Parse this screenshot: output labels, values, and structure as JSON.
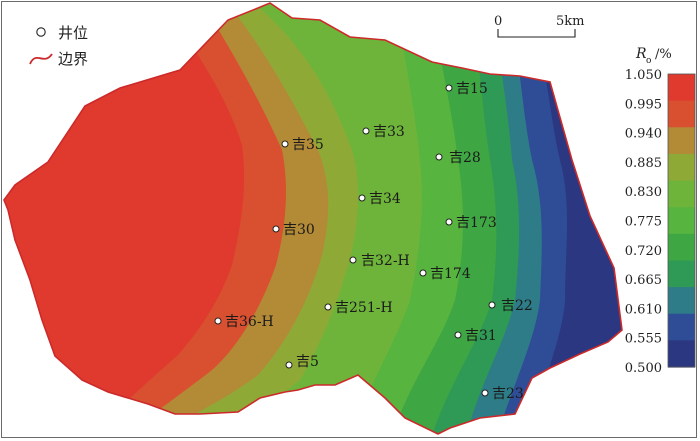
{
  "legend": {
    "well_label": "井位",
    "boundary_label": "边界"
  },
  "scale_bar": {
    "start_label": "0",
    "end_label": "5km"
  },
  "colorbar": {
    "title_symbol": "R",
    "title_subscript": "o",
    "title_unit": "/%",
    "ticks": [
      "1.050",
      "0.995",
      "0.940",
      "0.885",
      "0.830",
      "0.775",
      "0.720",
      "0.665",
      "0.610",
      "0.555",
      "0.500"
    ],
    "colors": [
      "#e03a2e",
      "#d8502f",
      "#b38a36",
      "#8fa936",
      "#6fb43a",
      "#57b43f",
      "#3fa644",
      "#2f9a55",
      "#2e7c87",
      "#2f4d96",
      "#2b3780"
    ]
  },
  "wells": [
    {
      "id": "well-ji15",
      "label": "吉15"
    },
    {
      "id": "well-ji33",
      "label": "吉33"
    },
    {
      "id": "well-ji35",
      "label": "吉35"
    },
    {
      "id": "well-ji28",
      "label": "吉28"
    },
    {
      "id": "well-ji34",
      "label": "吉34"
    },
    {
      "id": "well-ji173",
      "label": "吉173"
    },
    {
      "id": "well-ji30",
      "label": "吉30"
    },
    {
      "id": "well-ji32h",
      "label": "吉32-H"
    },
    {
      "id": "well-ji174",
      "label": "吉174"
    },
    {
      "id": "well-ji251h",
      "label": "吉251-H"
    },
    {
      "id": "well-ji22",
      "label": "吉22"
    },
    {
      "id": "well-ji36h",
      "label": "吉36-H"
    },
    {
      "id": "well-ji31",
      "label": "吉31"
    },
    {
      "id": "well-ji5",
      "label": "吉5"
    },
    {
      "id": "well-ji23",
      "label": "吉23"
    }
  ]
}
